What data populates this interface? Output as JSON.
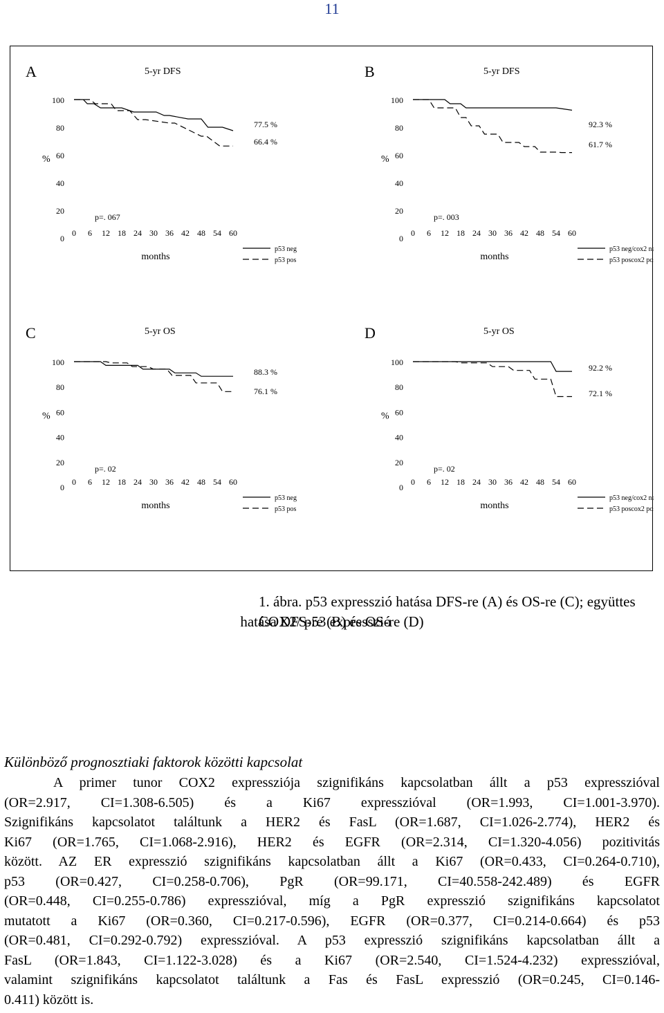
{
  "page_number": "11",
  "figure": {
    "panels": [
      {
        "letter": "A",
        "title": "5-yr DFS",
        "y_unit": "%",
        "p_value": "p=. 067",
        "x_label": "months",
        "legend": [
          "p53 neg",
          "p53 pos"
        ],
        "endpoint_labels": [
          "77.5 %",
          "66.4 %"
        ]
      },
      {
        "letter": "B",
        "title": "5-yr DFS",
        "y_unit": "%",
        "p_value": "p=. 003",
        "x_label": "months",
        "legend": [
          "p53 neg/cox2 neg",
          "p53 poscox2 pos"
        ],
        "endpoint_labels": [
          "92.3 %",
          "61.7 %"
        ]
      },
      {
        "letter": "C",
        "title": "5-yr OS",
        "y_unit": "%",
        "p_value": "p=. 02",
        "x_label": "months",
        "legend": [
          "p53 neg",
          "p53 pos"
        ],
        "endpoint_labels": [
          "88.3 %",
          "76.1 %"
        ]
      },
      {
        "letter": "D",
        "title": "5-yr OS",
        "y_unit": "%",
        "p_value": "p=. 02",
        "x_label": "months",
        "legend": [
          "p53 neg/cox2 neg",
          "p53 poscox2 pos"
        ],
        "endpoint_labels": [
          "92.2 %",
          "72.1 %"
        ]
      }
    ]
  },
  "chart_data": [
    {
      "type": "line",
      "panel": "A",
      "title": "5-yr DFS",
      "xlabel": "months",
      "ylabel": "%",
      "x_ticks": [
        0,
        6,
        12,
        18,
        24,
        30,
        36,
        42,
        48,
        54,
        60
      ],
      "y_ticks": [
        0,
        20,
        40,
        60,
        80,
        100
      ],
      "xlim": [
        0,
        60
      ],
      "ylim": [
        0,
        100
      ],
      "series": [
        {
          "name": "p53 neg",
          "style": "solid",
          "x": [
            0,
            3.5,
            5,
            7.5,
            10,
            18,
            22.5,
            31,
            34,
            36,
            43,
            48,
            50.5,
            56,
            60
          ],
          "y": [
            100,
            100,
            97,
            97,
            94,
            94,
            91,
            91,
            88.5,
            88.5,
            86,
            86,
            80,
            80,
            77.5
          ]
        },
        {
          "name": "p53 pos",
          "style": "dashed",
          "x": [
            0,
            6,
            8,
            14,
            16,
            21,
            24,
            27,
            36,
            38,
            48,
            50,
            55,
            60
          ],
          "y": [
            100,
            100,
            97,
            97,
            92,
            92,
            85.5,
            85.5,
            83,
            83,
            73.5,
            73.5,
            66.4,
            66.4
          ]
        }
      ]
    },
    {
      "type": "line",
      "panel": "B",
      "title": "5-yr DFS",
      "xlabel": "months",
      "ylabel": "%",
      "x_ticks": [
        0,
        6,
        12,
        18,
        24,
        30,
        36,
        42,
        48,
        54,
        60
      ],
      "y_ticks": [
        0,
        20,
        40,
        60,
        80,
        100
      ],
      "xlim": [
        0,
        60
      ],
      "ylim": [
        0,
        100
      ],
      "series": [
        {
          "name": "p53 neg/cox2 neg",
          "style": "solid",
          "x": [
            0,
            12,
            14,
            18,
            20,
            54,
            60
          ],
          "y": [
            100,
            100,
            97,
            97,
            94,
            94,
            92.3
          ]
        },
        {
          "name": "p53 poscox2 pos",
          "style": "dashed",
          "x": [
            0,
            6,
            8,
            16,
            18,
            20,
            22,
            25,
            27,
            32,
            34,
            40,
            42,
            46,
            48,
            54,
            56,
            60
          ],
          "y": [
            100,
            100,
            94,
            94,
            87,
            87,
            81,
            81,
            75,
            75,
            69,
            69,
            66,
            66,
            62,
            62,
            61.7,
            61.7
          ]
        }
      ]
    },
    {
      "type": "line",
      "panel": "C",
      "title": "5-yr OS",
      "xlabel": "months",
      "ylabel": "%",
      "x_ticks": [
        0,
        6,
        12,
        18,
        24,
        30,
        36,
        42,
        48,
        54,
        60
      ],
      "y_ticks": [
        0,
        20,
        40,
        60,
        80,
        100
      ],
      "xlim": [
        0,
        60
      ],
      "ylim": [
        0,
        100
      ],
      "series": [
        {
          "name": "p53 neg",
          "style": "solid",
          "x": [
            0,
            10,
            12,
            24,
            26,
            36,
            38,
            46,
            48,
            60
          ],
          "y": [
            100,
            100,
            97,
            97,
            94,
            94,
            91,
            91,
            88.3,
            88.3
          ]
        },
        {
          "name": "p53 pos",
          "style": "dashed",
          "x": [
            0,
            12,
            14,
            20,
            22,
            28,
            30,
            35,
            37,
            44,
            46,
            54,
            56,
            60
          ],
          "y": [
            100,
            100,
            99,
            99,
            96,
            96,
            94,
            94,
            89,
            89,
            83,
            83,
            76.1,
            76.1
          ]
        }
      ]
    },
    {
      "type": "line",
      "panel": "D",
      "title": "5-yr OS",
      "xlabel": "months",
      "ylabel": "%",
      "x_ticks": [
        0,
        6,
        12,
        18,
        24,
        30,
        36,
        42,
        48,
        54,
        60
      ],
      "y_ticks": [
        0,
        20,
        40,
        60,
        80,
        100
      ],
      "xlim": [
        0,
        60
      ],
      "ylim": [
        0,
        100
      ],
      "series": [
        {
          "name": "p53 neg/cox2 neg",
          "style": "solid",
          "x": [
            0,
            52,
            54,
            60
          ],
          "y": [
            100,
            100,
            92.2,
            92.2
          ]
        },
        {
          "name": "p53 poscox2 pos",
          "style": "dashed",
          "x": [
            0,
            16,
            18,
            28,
            30,
            36,
            38,
            44,
            46,
            52,
            54,
            60
          ],
          "y": [
            100,
            100,
            99,
            99,
            96,
            96,
            93,
            93,
            86,
            86,
            72.1,
            72.1
          ]
        }
      ]
    }
  ],
  "caption": {
    "line1": "1. ábra. p53 expresszió hatása DFS-re (A) és OS-re (C); együttes COX2/ p53 expresszió",
    "line2": "hatása DFS-re (B) és OS-re (D)"
  },
  "section": {
    "heading": "Különböző prognosztiaki faktorok közötti kapcsolat",
    "lines": [
      "A primer tunor COX2 expressziója szignifikáns kapcsolatban állt a p53 expresszióval",
      "(OR=2.917, CI=1.308-6.505) és a Ki67 expresszióval (OR=1.993, CI=1.001-3.970).",
      "Szignifikáns kapcsolatot találtunk a HER2 és FasL (OR=1.687, CI=1.026-2.774), HER2 és",
      "Ki67 (OR=1.765, CI=1.068-2.916), HER2 és EGFR (OR=2.314, CI=1.320-4.056) pozitivitás",
      "között. AZ ER expresszió szignifikáns kapcsolatban állt a Ki67 (OR=0.433, CI=0.264-0.710),",
      "p53 (OR=0.427, CI=0.258-0.706), PgR (OR=99.171, CI=40.558-242.489) és EGFR",
      "(OR=0.448, CI=0.255-0.786) expresszióval, míg a PgR expresszió szignifikáns kapcsolatot",
      "mutatott a Ki67 (OR=0.360, CI=0.217-0.596), EGFR (OR=0.377, CI=0.214-0.664) és p53",
      "(OR=0.481, CI=0.292-0.792) expresszióval. A p53 expresszió szignifikáns kapcsolatban állt a",
      "FasL (OR=1.843, CI=1.122-3.028) és a Ki67 (OR=2.540, CI=1.524-4.232) expresszióval,",
      "valamint szignifikáns kapcsolatot találtunk a Fas és FasL expresszió (OR=0.245, CI=0.146-",
      "0.411) között is."
    ]
  }
}
